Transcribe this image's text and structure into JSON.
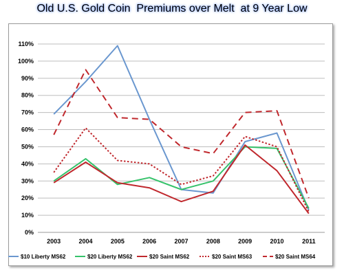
{
  "title": "Old U.S. Gold Coin  Premiums over Melt  at 9 Year Low",
  "chart_data": {
    "type": "line",
    "title": "Old U.S. Gold Coin  Premiums over Melt  at 9 Year Low",
    "x": [
      "2003",
      "2004",
      "2005",
      "2006",
      "2007",
      "2008",
      "2009",
      "2010",
      "2011"
    ],
    "ylim": [
      0,
      110
    ],
    "yticks": [
      0,
      10,
      20,
      30,
      40,
      50,
      60,
      70,
      80,
      90,
      100,
      110
    ],
    "ytick_labels": [
      "0%",
      "10%",
      "20%",
      "30%",
      "40%",
      "50%",
      "60%",
      "70%",
      "80%",
      "90%",
      "100%",
      "110%"
    ],
    "grid": true,
    "legend": "bottom",
    "series": [
      {
        "name": "$10 Liberty MS62",
        "color": "#6a97cf",
        "style": "solid",
        "values": [
          69,
          88,
          109,
          66,
          25,
          23,
          53,
          58,
          13
        ]
      },
      {
        "name": "$20 Liberty MS62",
        "color": "#35c26a",
        "style": "solid",
        "values": [
          30,
          43,
          28,
          32,
          25,
          30,
          50,
          49,
          14
        ]
      },
      {
        "name": "$20 Saint MS62",
        "color": "#c0282d",
        "style": "solid",
        "values": [
          29,
          41,
          29,
          26,
          18,
          24,
          51,
          36,
          11
        ]
      },
      {
        "name": "$20 Saint MS63",
        "color": "#c0282d",
        "style": "dotted",
        "values": [
          35,
          61,
          42,
          40,
          28,
          33,
          56,
          50,
          12
        ]
      },
      {
        "name": "$20 Saint MS64",
        "color": "#c0282d",
        "style": "dashed",
        "values": [
          57,
          95,
          67,
          66,
          50,
          46,
          70,
          71,
          20
        ]
      }
    ]
  }
}
